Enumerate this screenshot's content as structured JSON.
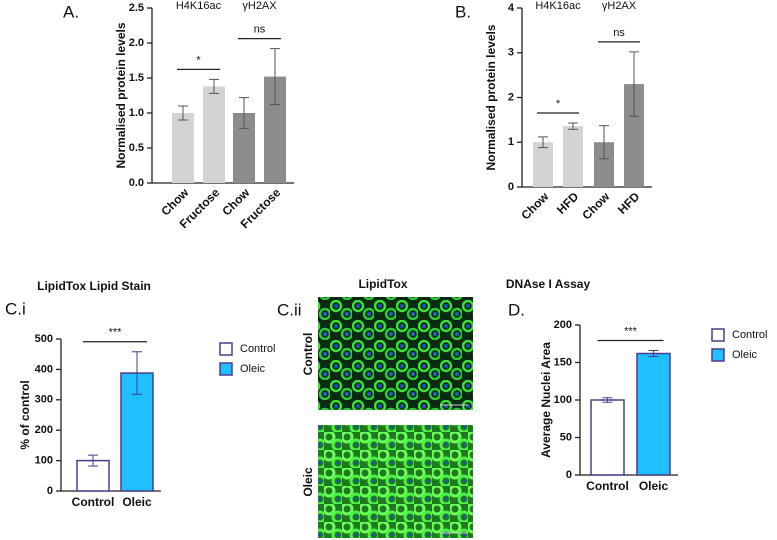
{
  "chart_data": [
    {
      "type": "bar",
      "panel_label": "A.",
      "ylabel": "Normalised protein levels",
      "categories": [
        "Chow",
        "Fructose",
        "Chow",
        "Fructose"
      ],
      "values": [
        1.0,
        1.38,
        1.0,
        1.52
      ],
      "errors": [
        0.1,
        0.1,
        0.22,
        0.4
      ],
      "colors": [
        "#d3d3d3",
        "#d3d3d3",
        "#8c8c8c",
        "#8c8c8c"
      ],
      "group_labels": [
        "H4K16ac",
        "γH2AX"
      ],
      "significance": [
        "*",
        "ns"
      ],
      "ylim": [
        0,
        2.5
      ],
      "yticks": [
        {
          "value": 0,
          "label": "0.0"
        },
        0.5,
        {
          "value": 1,
          "label": "1.0"
        },
        1.5,
        {
          "value": 2,
          "label": "2.0"
        },
        2.5
      ]
    },
    {
      "type": "bar",
      "panel_label": "B.",
      "ylabel": "Normalised protein levels",
      "categories": [
        "Chow",
        "HFD",
        "Chow",
        "HFD"
      ],
      "values": [
        1.0,
        1.36,
        1.0,
        2.3
      ],
      "errors": [
        0.12,
        0.07,
        0.37,
        0.72
      ],
      "colors": [
        "#d3d3d3",
        "#d3d3d3",
        "#8c8c8c",
        "#8c8c8c"
      ],
      "group_labels": [
        "H4K16ac",
        "γH2AX"
      ],
      "significance": [
        "*",
        "ns"
      ],
      "ylim": [
        0,
        4
      ],
      "yticks": [
        0,
        1,
        2,
        3,
        4
      ]
    },
    {
      "type": "bar",
      "title": "LipidTox Lipid Stain",
      "panel_label": "C.i",
      "ylabel": "% of control",
      "categories": [
        "Control",
        "Oleic"
      ],
      "values": [
        100,
        388
      ],
      "errors": [
        18,
        70
      ],
      "colors": [
        "#ffffff",
        "#1ec0ff"
      ],
      "outline": "#4b3b8f",
      "legend": true,
      "significance": [
        "***"
      ],
      "ylim": [
        0,
        500
      ],
      "yticks": [
        0,
        100,
        200,
        300,
        400,
        500
      ]
    },
    {
      "type": "bar",
      "title": "DNAse I Assay",
      "panel_label": "D.",
      "ylabel": "Average Nuclei Area",
      "categories": [
        "Control",
        "Oleic"
      ],
      "values": [
        100,
        162
      ],
      "errors": [
        3,
        4
      ],
      "colors": [
        "#ffffff",
        "#1ec0ff"
      ],
      "outline": "#4b3b8f",
      "legend": true,
      "significance": [
        "***"
      ],
      "ylim": [
        0,
        200
      ],
      "yticks": [
        0,
        50,
        100,
        150,
        200
      ]
    }
  ],
  "image_panel": {
    "panel_label": "C.ii",
    "title": "LipidTox",
    "rows": [
      "Control",
      "Oleic"
    ]
  }
}
